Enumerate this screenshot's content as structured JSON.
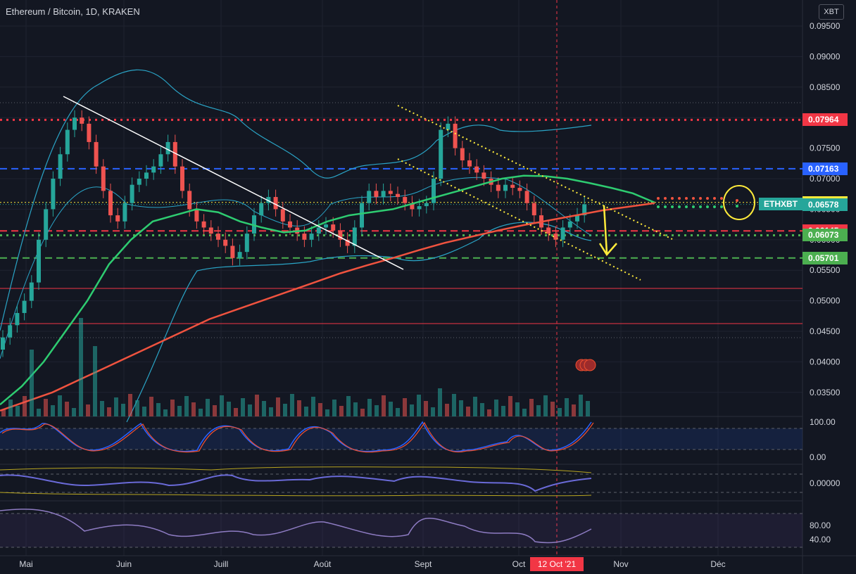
{
  "header": {
    "title": "Ethereum / Bitcoin, 1D, KRAKEN",
    "currency": "XBT"
  },
  "colors": {
    "background": "#131722",
    "up": "#26a69a",
    "down": "#ef5350",
    "ema_fast": "#2ecc71",
    "ema_slow": "#f0533f",
    "bollinger": "#2aa4c6",
    "yellow": "#ffeb3b",
    "stoch_k": "#2962ff",
    "stoch_d": "#f05030",
    "rsi": "#8e7cc3",
    "macd": "#6a6ad8"
  },
  "chart_data": {
    "type": "candlestick",
    "y_axis": {
      "min": 0.031,
      "max": 0.098,
      "ticks": [
        "0.09500",
        "0.09000",
        "0.08500",
        "0.08000",
        "0.07500",
        "0.07000",
        "0.06500",
        "0.06000",
        "0.05500",
        "0.05000",
        "0.04500",
        "0.04000",
        "0.03500"
      ]
    },
    "x_axis": {
      "ticks": [
        "Mai",
        "Juin",
        "Juill",
        "Août",
        "Sept",
        "Oct",
        "Nov",
        "Déc"
      ],
      "cursor_date": "12 Oct '21"
    },
    "series_close": [
      0.044,
      0.046,
      0.048,
      0.05,
      0.053,
      0.06,
      0.065,
      0.07,
      0.074,
      0.078,
      0.08,
      0.079,
      0.076,
      0.072,
      0.068,
      0.064,
      0.063,
      0.066,
      0.069,
      0.07,
      0.071,
      0.072,
      0.074,
      0.076,
      0.072,
      0.068,
      0.065,
      0.063,
      0.062,
      0.061,
      0.06,
      0.059,
      0.057,
      0.058,
      0.061,
      0.064,
      0.066,
      0.067,
      0.065,
      0.063,
      0.062,
      0.061,
      0.06,
      0.061,
      0.062,
      0.0625,
      0.0615,
      0.06,
      0.059,
      0.062,
      0.066,
      0.068,
      0.067,
      0.068,
      0.0675,
      0.067,
      0.066,
      0.065,
      0.0655,
      0.066,
      0.07,
      0.078,
      0.079,
      0.075,
      0.073,
      0.072,
      0.071,
      0.07,
      0.069,
      0.068,
      0.069,
      0.0685,
      0.068,
      0.066,
      0.064,
      0.062,
      0.061,
      0.06,
      0.062,
      0.063,
      0.064,
      0.0658
    ],
    "ema_fast": [
      0.033,
      0.036,
      0.04,
      0.045,
      0.05,
      0.056,
      0.06,
      0.063,
      0.064,
      0.065,
      0.0645,
      0.063,
      0.062,
      0.0612,
      0.0615,
      0.063,
      0.064,
      0.0645,
      0.065,
      0.066,
      0.067,
      0.068,
      0.069,
      0.07,
      0.0705,
      0.0704,
      0.07,
      0.0693,
      0.0685,
      0.0676,
      0.0661
    ],
    "ema_slow": [
      0.032,
      0.0335,
      0.035,
      0.037,
      0.039,
      0.041,
      0.043,
      0.045,
      0.047,
      0.0485,
      0.05,
      0.0515,
      0.053,
      0.0545,
      0.0558,
      0.057,
      0.0583,
      0.0595,
      0.0605,
      0.0615,
      0.0624,
      0.0632,
      0.064,
      0.0648,
      0.0654,
      0.066
    ],
    "horizontal_levels": [
      {
        "value": 0.07964,
        "label": "0.07964",
        "color": "#f23645",
        "style": "dotted"
      },
      {
        "value": 0.07163,
        "label": "0.07163",
        "color": "#2962ff",
        "style": "dashed"
      },
      {
        "value": 0.06611,
        "label": "0.06611",
        "color": "#ffeb3b",
        "style": "dotted"
      },
      {
        "value": 0.06578,
        "label": "0.06578",
        "color": "#26a69a",
        "style": "solid"
      },
      {
        "value": 0.06145,
        "label": "0.06145",
        "color": "#f23645",
        "style": "dashed"
      },
      {
        "value": 0.06073,
        "label": "0.06073",
        "color": "#4caf50",
        "style": "dotted"
      },
      {
        "value": 0.05701,
        "label": "0.05701",
        "color": "#4caf50",
        "style": "dashed"
      }
    ],
    "symbol": "ETHXBT",
    "indicators": {
      "stochastic": {
        "ticks": [
          "100.00",
          "0.00"
        ]
      },
      "macd": {
        "ticks": [
          "0.00000"
        ]
      },
      "rsi": {
        "ticks": [
          "80.00",
          "40.00"
        ]
      }
    }
  }
}
